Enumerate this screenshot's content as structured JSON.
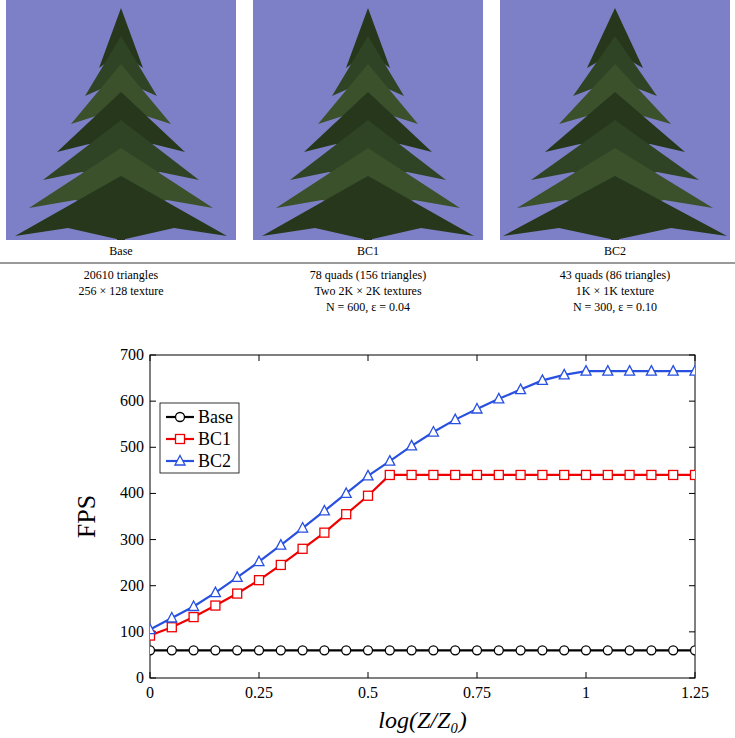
{
  "images": [
    {
      "title": "Base",
      "lines": [
        "20610 triangles",
        "256 × 128 texture"
      ]
    },
    {
      "title": "BC1",
      "lines": [
        "78 quads (156 triangles)",
        "Two 2K × 2K textures",
        "N = 600, ε = 0.04"
      ]
    },
    {
      "title": "BC2",
      "lines": [
        "43 quads (86 triangles)",
        "1K × 1K texture",
        "N = 300, ε = 0.10"
      ]
    }
  ],
  "chart_data": {
    "type": "line",
    "x": [
      0,
      0.05,
      0.1,
      0.15,
      0.2,
      0.25,
      0.3,
      0.35,
      0.4,
      0.45,
      0.5,
      0.55,
      0.6,
      0.65,
      0.7,
      0.75,
      0.8,
      0.85,
      0.9,
      0.95,
      1,
      1.05,
      1.1,
      1.15,
      1.2,
      1.25
    ],
    "series": [
      {
        "name": "Base",
        "color": "#000000",
        "marker": "circle",
        "values": [
          60,
          60,
          60,
          60,
          60,
          60,
          60,
          60,
          60,
          60,
          60,
          60,
          60,
          60,
          60,
          60,
          60,
          60,
          60,
          60,
          60,
          60,
          60,
          60,
          60,
          60
        ]
      },
      {
        "name": "BC1",
        "color": "#ee0000",
        "marker": "square",
        "values": [
          92,
          110,
          132,
          157,
          183,
          212,
          245,
          280,
          315,
          355,
          395,
          440,
          440,
          440,
          440,
          440,
          440,
          440,
          440,
          440,
          440,
          440,
          440,
          440,
          440,
          440
        ]
      },
      {
        "name": "BC2",
        "color": "#2850e0",
        "marker": "triangle",
        "values": [
          105,
          130,
          155,
          185,
          218,
          252,
          288,
          325,
          362,
          400,
          438,
          470,
          503,
          533,
          560,
          583,
          605,
          625,
          645,
          657,
          665,
          665,
          665,
          665,
          665,
          665
        ]
      }
    ],
    "xlim": [
      0,
      1.25
    ],
    "xticks": [
      0,
      0.25,
      0.5,
      0.75,
      1,
      1.25
    ],
    "ylim": [
      0,
      700
    ],
    "yticks": [
      0,
      100,
      200,
      300,
      400,
      500,
      600,
      700
    ],
    "x_label": "log(Z/Z₀)",
    "y_label": "FPS",
    "legend": "upper left"
  }
}
